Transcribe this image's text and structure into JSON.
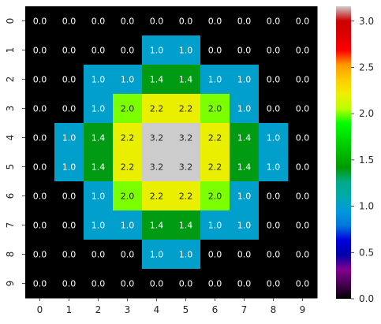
{
  "chart_data": {
    "type": "heatmap",
    "title": "",
    "xlabel": "",
    "ylabel": "",
    "x_categories": [
      "0",
      "1",
      "2",
      "3",
      "4",
      "5",
      "6",
      "7",
      "8",
      "9"
    ],
    "y_categories": [
      "0",
      "1",
      "2",
      "3",
      "4",
      "5",
      "6",
      "7",
      "8",
      "9"
    ],
    "values": [
      [
        0.0,
        0.0,
        0.0,
        0.0,
        0.0,
        0.0,
        0.0,
        0.0,
        0.0,
        0.0
      ],
      [
        0.0,
        0.0,
        0.0,
        0.0,
        1.0,
        1.0,
        0.0,
        0.0,
        0.0,
        0.0
      ],
      [
        0.0,
        0.0,
        1.0,
        1.0,
        1.4,
        1.4,
        1.0,
        1.0,
        0.0,
        0.0
      ],
      [
        0.0,
        0.0,
        1.0,
        2.0,
        2.2,
        2.2,
        2.0,
        1.0,
        0.0,
        0.0
      ],
      [
        0.0,
        1.0,
        1.4,
        2.2,
        3.2,
        3.2,
        2.2,
        1.4,
        1.0,
        0.0
      ],
      [
        0.0,
        1.0,
        1.4,
        2.2,
        3.2,
        3.2,
        2.2,
        1.4,
        1.0,
        0.0
      ],
      [
        0.0,
        0.0,
        1.0,
        2.0,
        2.2,
        2.2,
        2.0,
        1.0,
        0.0,
        0.0
      ],
      [
        0.0,
        0.0,
        1.0,
        1.0,
        1.4,
        1.4,
        1.0,
        1.0,
        0.0,
        0.0
      ],
      [
        0.0,
        0.0,
        0.0,
        0.0,
        1.0,
        1.0,
        0.0,
        0.0,
        0.0,
        0.0
      ],
      [
        0.0,
        0.0,
        0.0,
        0.0,
        0.0,
        0.0,
        0.0,
        0.0,
        0.0,
        0.0
      ]
    ],
    "annotation_format": "0.0",
    "colormap": "nipy_spectral",
    "color_range": [
      0.0,
      3.16
    ],
    "colorbar": {
      "ticks": [
        0.0,
        0.5,
        1.0,
        1.5,
        2.0,
        2.5,
        3.0
      ],
      "tick_labels": [
        "0.0",
        "0.5",
        "1.0",
        "1.5",
        "2.0",
        "2.5",
        "3.0"
      ],
      "placement": "right"
    },
    "colormap_stops": [
      [
        0.0,
        "#000000"
      ],
      [
        0.05,
        "#470052"
      ],
      [
        0.1,
        "#82008f"
      ],
      [
        0.15,
        "#0000aa"
      ],
      [
        0.2,
        "#0000dd"
      ],
      [
        0.25,
        "#0077dd"
      ],
      [
        0.3,
        "#0099dd"
      ],
      [
        0.35,
        "#00aaaa"
      ],
      [
        0.4,
        "#00aa88"
      ],
      [
        0.45,
        "#009900"
      ],
      [
        0.5,
        "#00bb00"
      ],
      [
        0.55,
        "#00dd00"
      ],
      [
        0.6,
        "#00ff00"
      ],
      [
        0.65,
        "#bbff00"
      ],
      [
        0.7,
        "#eeee00"
      ],
      [
        0.75,
        "#ffcc00"
      ],
      [
        0.8,
        "#ff9900"
      ],
      [
        0.85,
        "#ff0000"
      ],
      [
        0.9,
        "#dd0000"
      ],
      [
        0.95,
        "#cc0000"
      ],
      [
        1.0,
        "#cccccc"
      ]
    ],
    "grid": false
  }
}
